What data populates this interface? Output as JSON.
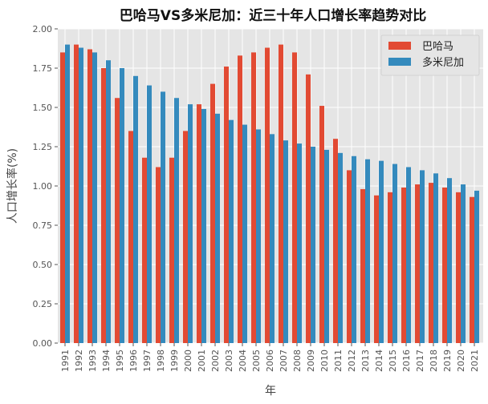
{
  "chart_data": {
    "type": "bar",
    "title": "巴哈马VS多米尼加：近三十年人口增长率趋势对比",
    "xlabel": "年",
    "ylabel": "人口增长率(%)",
    "ylim": [
      0,
      2.0
    ],
    "yticks": [
      "0.00",
      "0.25",
      "0.50",
      "0.75",
      "1.00",
      "1.25",
      "1.50",
      "1.75",
      "2.00"
    ],
    "grid": true,
    "legend": "top-right",
    "categories": [
      "1991",
      "1992",
      "1993",
      "1994",
      "1995",
      "1996",
      "1997",
      "1998",
      "1999",
      "2000",
      "2001",
      "2002",
      "2003",
      "2004",
      "2005",
      "2006",
      "2007",
      "2008",
      "2009",
      "2010",
      "2011",
      "2012",
      "2013",
      "2014",
      "2015",
      "2016",
      "2017",
      "2018",
      "2019",
      "2020",
      "2021"
    ],
    "series": [
      {
        "name": "巴哈马",
        "color": "#e24a33",
        "values": [
          1.85,
          1.9,
          1.87,
          1.75,
          1.56,
          1.35,
          1.18,
          1.12,
          1.18,
          1.35,
          1.52,
          1.65,
          1.76,
          1.83,
          1.85,
          1.88,
          1.9,
          1.85,
          1.71,
          1.51,
          1.3,
          1.1,
          0.98,
          0.94,
          0.96,
          0.99,
          1.01,
          1.02,
          0.99,
          0.96,
          0.93
        ]
      },
      {
        "name": "多米尼加",
        "color": "#348abd",
        "values": [
          1.9,
          1.88,
          1.85,
          1.8,
          1.75,
          1.7,
          1.64,
          1.6,
          1.56,
          1.52,
          1.49,
          1.46,
          1.42,
          1.39,
          1.36,
          1.33,
          1.29,
          1.27,
          1.25,
          1.23,
          1.21,
          1.19,
          1.17,
          1.16,
          1.14,
          1.12,
          1.1,
          1.08,
          1.05,
          1.01,
          0.97
        ]
      }
    ]
  }
}
